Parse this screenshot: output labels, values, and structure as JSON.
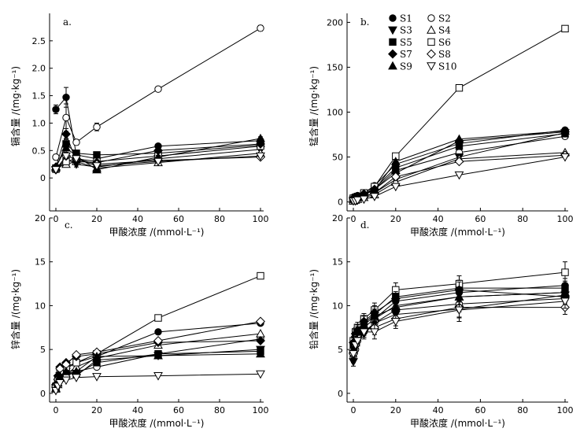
{
  "figure": {
    "legend": [
      {
        "name": "S1",
        "marker": "circle-filled"
      },
      {
        "name": "S2",
        "marker": "circle-open"
      },
      {
        "name": "S3",
        "marker": "tri-down-filled"
      },
      {
        "name": "S4",
        "marker": "tri-up-open"
      },
      {
        "name": "S5",
        "marker": "square-filled"
      },
      {
        "name": "S6",
        "marker": "square-open"
      },
      {
        "name": "S7",
        "marker": "diamond-filled"
      },
      {
        "name": "S8",
        "marker": "diamond-open"
      },
      {
        "name": "S9",
        "marker": "tri-up-filled"
      },
      {
        "name": "S10",
        "marker": "tri-down-open"
      }
    ]
  },
  "chart_data": [
    {
      "type": "line",
      "panel_label": "a.",
      "xlabel": "甲酸浓度 /(mmol·L⁻¹)",
      "ylabel": "镉含量 /(mg·kg⁻¹)",
      "xlim": [
        0,
        100
      ],
      "ylim": [
        -0.6,
        3.0
      ],
      "xticks": [
        0,
        20,
        40,
        60,
        80,
        100
      ],
      "xtick_labels": [
        "0",
        "20",
        "40",
        "60",
        "80",
        "100"
      ],
      "yticks": [
        0,
        0.5,
        1.0,
        1.5,
        2.0,
        2.5
      ],
      "ytick_labels": [
        "0",
        "0.5",
        "1.0",
        "1.5",
        "2.0",
        "2.5"
      ],
      "x": [
        0,
        5,
        10,
        20,
        50,
        100
      ],
      "series": [
        {
          "name": "S1",
          "values": [
            1.25,
            1.47,
            0.42,
            0.35,
            0.58,
            0.68
          ],
          "err": [
            0.08,
            0.18,
            0.05,
            0.05,
            0.03,
            0.03
          ]
        },
        {
          "name": "S2",
          "values": [
            0.38,
            1.1,
            0.65,
            0.93,
            1.62,
            2.73
          ],
          "err": [
            0.05,
            0.25,
            0.05,
            0.07,
            0.03,
            0.05
          ]
        },
        {
          "name": "S3",
          "values": [
            0.15,
            0.35,
            0.25,
            0.2,
            0.35,
            0.52
          ],
          "err": [
            0.03,
            0.05,
            0.05,
            0.05,
            0.02,
            0.02
          ]
        },
        {
          "name": "S4",
          "values": [
            0.18,
            0.25,
            0.3,
            0.18,
            0.28,
            0.45
          ],
          "err": [
            0.03,
            0.05,
            0.05,
            0.05,
            0.02,
            0.02
          ]
        },
        {
          "name": "S5",
          "values": [
            0.18,
            0.62,
            0.45,
            0.42,
            0.45,
            0.6
          ],
          "err": [
            0.03,
            0.1,
            0.05,
            0.05,
            0.03,
            0.03
          ]
        },
        {
          "name": "S6",
          "values": [
            0.16,
            0.3,
            0.35,
            0.3,
            0.4,
            0.58
          ],
          "err": [
            0.03,
            0.05,
            0.05,
            0.05,
            0.03,
            0.03
          ]
        },
        {
          "name": "S7",
          "values": [
            0.2,
            0.8,
            0.3,
            0.28,
            0.5,
            0.62
          ],
          "err": [
            0.03,
            0.1,
            0.05,
            0.05,
            0.03,
            0.03
          ]
        },
        {
          "name": "S8",
          "values": [
            0.15,
            0.4,
            0.35,
            0.25,
            0.32,
            0.38
          ],
          "err": [
            0.03,
            0.05,
            0.05,
            0.05,
            0.02,
            0.02
          ]
        },
        {
          "name": "S9",
          "values": [
            0.2,
            0.55,
            0.4,
            0.15,
            0.38,
            0.72
          ],
          "err": [
            0.03,
            0.08,
            0.05,
            0.05,
            0.03,
            0.03
          ]
        },
        {
          "name": "S10",
          "values": [
            0.15,
            0.4,
            0.35,
            0.22,
            0.3,
            0.4
          ],
          "err": [
            0.03,
            0.05,
            0.05,
            0.05,
            0.02,
            0.02
          ]
        }
      ]
    },
    {
      "type": "line",
      "panel_label": "b.",
      "xlabel": "甲酸浓度 /(mmol·L⁻¹)",
      "ylabel": "锰含量 /(mg·kg⁻¹)",
      "xlim": [
        0,
        100
      ],
      "ylim": [
        -10,
        210
      ],
      "xticks": [
        0,
        20,
        40,
        60,
        80,
        100
      ],
      "xtick_labels": [
        "0",
        "20",
        "40",
        "60",
        "80",
        "100"
      ],
      "yticks": [
        0,
        50,
        100,
        150,
        200
      ],
      "ytick_labels": [
        "0",
        "50",
        "100",
        "150",
        "200"
      ],
      "x": [
        0,
        1,
        2,
        5,
        10,
        20,
        50,
        100
      ],
      "series": [
        {
          "name": "S1",
          "values": [
            5,
            6,
            7,
            10,
            18,
            42,
            65,
            80
          ],
          "err": [
            0,
            0,
            0,
            0,
            0,
            0,
            0,
            0
          ]
        },
        {
          "name": "S2",
          "values": [
            3,
            4,
            5,
            8,
            14,
            35,
            55,
            73
          ],
          "err": [
            0,
            0,
            0,
            0,
            0,
            0,
            0,
            0
          ]
        },
        {
          "name": "S3",
          "values": [
            2,
            3,
            4,
            6,
            10,
            25,
            50,
            77
          ],
          "err": [
            0,
            0,
            0,
            0,
            0,
            0,
            0,
            0
          ]
        },
        {
          "name": "S4",
          "values": [
            1,
            2,
            3,
            5,
            8,
            22,
            48,
            55
          ],
          "err": [
            0,
            0,
            0,
            0,
            0,
            0,
            0,
            0
          ]
        },
        {
          "name": "S5",
          "values": [
            4,
            5,
            6,
            9,
            15,
            38,
            62,
            76
          ],
          "err": [
            0,
            0,
            0,
            0,
            0,
            0,
            0,
            0
          ]
        },
        {
          "name": "S6",
          "values": [
            4,
            5,
            6,
            10,
            17,
            51,
            127,
            193
          ],
          "err": [
            0,
            0,
            0,
            0,
            0,
            0,
            0,
            0
          ]
        },
        {
          "name": "S7",
          "values": [
            4,
            5,
            6,
            9,
            14,
            32,
            68,
            78
          ],
          "err": [
            0,
            0,
            0,
            0,
            0,
            0,
            0,
            0
          ]
        },
        {
          "name": "S8",
          "values": [
            2,
            3,
            4,
            6,
            10,
            28,
            45,
            52
          ],
          "err": [
            0,
            0,
            0,
            0,
            0,
            0,
            0,
            0
          ]
        },
        {
          "name": "S9",
          "values": [
            3,
            4,
            5,
            8,
            13,
            45,
            70,
            79
          ],
          "err": [
            0,
            0,
            0,
            0,
            0,
            0,
            0,
            0
          ]
        },
        {
          "name": "S10",
          "values": [
            1,
            1,
            2,
            3,
            6,
            17,
            30,
            50
          ],
          "err": [
            0,
            0,
            0,
            0,
            0,
            0,
            0,
            0
          ]
        }
      ]
    },
    {
      "type": "line",
      "panel_label": "c.",
      "xlabel": "甲酸浓度 /(mmol·L⁻¹)",
      "ylabel": "锌含量 /(mg·kg⁻¹)",
      "xlim": [
        0,
        100
      ],
      "ylim": [
        -1,
        20
      ],
      "xticks": [
        0,
        20,
        40,
        60,
        80,
        100
      ],
      "xtick_labels": [
        "0",
        "20",
        "40",
        "60",
        "80",
        "100"
      ],
      "yticks": [
        0,
        5,
        10,
        15,
        20
      ],
      "ytick_labels": [
        "0",
        "5",
        "10",
        "15",
        "20"
      ],
      "x": [
        0,
        1,
        2,
        5,
        10,
        20,
        50,
        100
      ],
      "series": [
        {
          "name": "S1",
          "values": [
            0.8,
            1.5,
            2.5,
            2.8,
            3.5,
            4.2,
            7.0,
            8.0
          ],
          "err": [
            0,
            0,
            0,
            0,
            0,
            0,
            0,
            0
          ]
        },
        {
          "name": "S2",
          "values": [
            0.5,
            1.0,
            1.5,
            2.0,
            2.5,
            3.0,
            4.5,
            6.2
          ],
          "err": [
            0,
            0,
            0,
            0,
            0,
            0,
            0,
            0
          ]
        },
        {
          "name": "S3",
          "values": [
            0.6,
            1.2,
            2.0,
            2.5,
            2.0,
            3.8,
            4.3,
            5.0
          ],
          "err": [
            0,
            0,
            0,
            0,
            0,
            0,
            0,
            0
          ]
        },
        {
          "name": "S4",
          "values": [
            0.5,
            1.0,
            1.8,
            2.2,
            3.0,
            4.0,
            5.5,
            6.8
          ],
          "err": [
            0,
            0,
            0,
            0,
            0,
            0,
            0,
            0
          ]
        },
        {
          "name": "S5",
          "values": [
            0.7,
            1.3,
            2.2,
            2.5,
            2.2,
            3.5,
            4.5,
            4.8
          ],
          "err": [
            0,
            0,
            0,
            0,
            0,
            0,
            0,
            0
          ]
        },
        {
          "name": "S6",
          "values": [
            0.8,
            1.5,
            2.5,
            3.0,
            3.5,
            4.5,
            8.6,
            13.4
          ],
          "err": [
            0,
            0,
            0,
            0,
            0,
            0,
            0,
            0
          ]
        },
        {
          "name": "S7",
          "values": [
            1.0,
            2.0,
            3.0,
            3.5,
            4.2,
            4.5,
            5.8,
            6.0
          ],
          "err": [
            0,
            0,
            0,
            0,
            0,
            0,
            0,
            0
          ]
        },
        {
          "name": "S8",
          "values": [
            0.8,
            1.6,
            2.8,
            3.3,
            4.4,
            4.7,
            6.0,
            8.2
          ],
          "err": [
            0,
            0,
            0,
            0,
            0,
            0,
            0,
            0
          ]
        },
        {
          "name": "S9",
          "values": [
            0.6,
            1.2,
            2.0,
            2.5,
            2.5,
            4.2,
            4.3,
            4.5
          ],
          "err": [
            0,
            0,
            0,
            0,
            0,
            0,
            0,
            0
          ]
        },
        {
          "name": "S10",
          "values": [
            0.3,
            0.8,
            1.2,
            1.5,
            1.8,
            1.9,
            2.0,
            2.2
          ],
          "err": [
            0,
            0,
            0,
            0,
            0,
            0,
            0,
            0
          ]
        }
      ]
    },
    {
      "type": "line",
      "panel_label": "d.",
      "xlabel": "甲酸浓度 /(mmol·L⁻¹)",
      "ylabel": "铅含量 /(mg·kg⁻¹)",
      "xlim": [
        0,
        100
      ],
      "ylim": [
        -1,
        20
      ],
      "xticks": [
        0,
        20,
        40,
        60,
        80,
        100
      ],
      "xtick_labels": [
        "0",
        "20",
        "40",
        "60",
        "80",
        "100"
      ],
      "yticks": [
        0,
        5,
        10,
        15,
        20
      ],
      "ytick_labels": [
        "0",
        "5",
        "10",
        "15",
        "20"
      ],
      "x": [
        0,
        1,
        2,
        5,
        10,
        20,
        50,
        100
      ],
      "series": [
        {
          "name": "S1",
          "values": [
            4.2,
            5.5,
            6.5,
            7.5,
            8.5,
            10.5,
            11.5,
            12.3
          ],
          "err": [
            0.5,
            0.5,
            0.6,
            0.6,
            0.8,
            0.8,
            0.9,
            0.8
          ]
        },
        {
          "name": "S2",
          "values": [
            4.0,
            5.0,
            6.0,
            7.0,
            8.0,
            9.5,
            10.2,
            10.8
          ],
          "err": [
            0.5,
            0.5,
            0.6,
            0.6,
            0.8,
            0.8,
            0.9,
            0.8
          ]
        },
        {
          "name": "S3",
          "values": [
            3.6,
            5.2,
            6.2,
            6.8,
            8.0,
            9.0,
            9.6,
            11.2
          ],
          "err": [
            0.5,
            0.5,
            0.6,
            0.6,
            0.8,
            0.8,
            0.9,
            0.8
          ]
        },
        {
          "name": "S4",
          "values": [
            5.0,
            6.0,
            7.0,
            7.5,
            8.5,
            10.0,
            11.0,
            11.5
          ],
          "err": [
            0.5,
            0.5,
            0.6,
            0.6,
            0.8,
            0.8,
            0.9,
            0.8
          ]
        },
        {
          "name": "S5",
          "values": [
            5.5,
            6.5,
            7.0,
            8.0,
            9.0,
            11.0,
            12.0,
            12.0
          ],
          "err": [
            0.5,
            0.5,
            0.6,
            0.6,
            0.8,
            0.8,
            0.9,
            0.8
          ]
        },
        {
          "name": "S6",
          "values": [
            6.0,
            7.0,
            7.5,
            8.5,
            9.5,
            11.8,
            12.5,
            13.8
          ],
          "err": [
            0.5,
            0.5,
            0.6,
            0.6,
            0.8,
            0.8,
            0.9,
            1.2
          ]
        },
        {
          "name": "S7",
          "values": [
            5.8,
            6.8,
            7.2,
            8.2,
            9.2,
            10.8,
            11.8,
            11.0
          ],
          "err": [
            0.5,
            0.5,
            0.6,
            0.6,
            0.8,
            0.8,
            0.9,
            0.8
          ]
        },
        {
          "name": "S8",
          "values": [
            4.5,
            5.5,
            6.5,
            7.2,
            7.5,
            8.5,
            9.8,
            9.8
          ],
          "err": [
            0.5,
            0.5,
            0.6,
            0.6,
            0.8,
            0.8,
            1.6,
            0.8
          ]
        },
        {
          "name": "S9",
          "values": [
            5.0,
            6.0,
            7.0,
            7.8,
            8.8,
            9.8,
            11.0,
            11.5
          ],
          "err": [
            0.5,
            0.5,
            0.6,
            0.6,
            0.8,
            0.8,
            0.9,
            0.8
          ]
        },
        {
          "name": "S10",
          "values": [
            4.5,
            5.5,
            6.0,
            7.0,
            7.0,
            8.2,
            9.5,
            10.5
          ],
          "err": [
            0.5,
            0.5,
            0.6,
            0.6,
            0.8,
            0.8,
            0.9,
            0.8
          ]
        }
      ]
    }
  ]
}
